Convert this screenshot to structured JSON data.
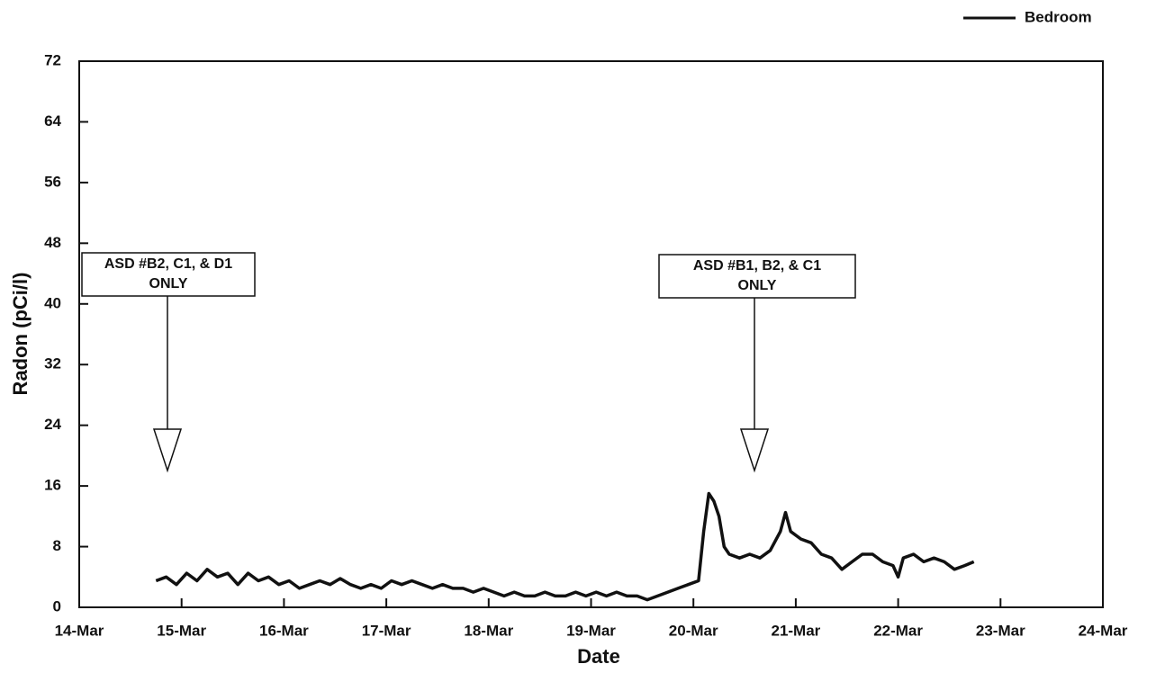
{
  "chart_data": {
    "type": "line",
    "x_label": "Date",
    "y_label": "Radon (pCi/l)",
    "xlim": [
      14,
      24
    ],
    "xticks": [
      {
        "value": 14,
        "label": "14-Mar"
      },
      {
        "value": 15,
        "label": "15-Mar"
      },
      {
        "value": 16,
        "label": "16-Mar"
      },
      {
        "value": 17,
        "label": "17-Mar"
      },
      {
        "value": 18,
        "label": "18-Mar"
      },
      {
        "value": 19,
        "label": "19-Mar"
      },
      {
        "value": 20,
        "label": "20-Mar"
      },
      {
        "value": 21,
        "label": "21-Mar"
      },
      {
        "value": 22,
        "label": "22-Mar"
      },
      {
        "value": 23,
        "label": "23-Mar"
      },
      {
        "value": 24,
        "label": "24-Mar"
      }
    ],
    "ylim": [
      0,
      72
    ],
    "yticks": [
      0,
      8,
      16,
      24,
      32,
      40,
      48,
      56,
      64,
      72
    ],
    "legend": "top-right",
    "annotations": [
      {
        "lines": [
          "ASD #B2, C1, & D1",
          "ONLY"
        ]
      },
      {
        "lines": [
          "ASD #B1, B2, & C1",
          "ONLY"
        ]
      }
    ],
    "x": [
      14.75,
      14.85,
      14.95,
      15.05,
      15.15,
      15.25,
      15.35,
      15.45,
      15.55,
      15.65,
      15.75,
      15.85,
      15.95,
      16.05,
      16.15,
      16.25,
      16.35,
      16.45,
      16.55,
      16.65,
      16.75,
      16.85,
      16.95,
      17.05,
      17.15,
      17.25,
      17.35,
      17.45,
      17.55,
      17.65,
      17.75,
      17.85,
      17.95,
      18.05,
      18.15,
      18.25,
      18.35,
      18.45,
      18.55,
      18.65,
      18.75,
      18.85,
      18.95,
      19.05,
      19.15,
      19.25,
      19.35,
      19.45,
      19.55,
      19.65,
      19.75,
      19.85,
      19.95,
      20.05,
      20.1,
      20.15,
      20.2,
      20.25,
      20.3,
      20.35,
      20.45,
      20.55,
      20.65,
      20.75,
      20.85,
      20.9,
      20.95,
      21.05,
      21.15,
      21.25,
      21.35,
      21.45,
      21.55,
      21.65,
      21.75,
      21.85,
      21.95,
      22.0,
      22.05,
      22.15,
      22.25,
      22.35,
      22.45,
      22.55,
      22.65,
      22.74
    ],
    "series": [
      {
        "name": "Bedroom",
        "color": "#111111",
        "values": [
          3.5,
          4,
          3,
          4.5,
          3.5,
          5,
          4,
          4.5,
          3,
          4.5,
          3.5,
          4,
          3,
          3.5,
          2.5,
          3,
          3.5,
          3,
          3.8,
          3,
          2.5,
          3,
          2.5,
          3.5,
          3,
          3.5,
          3,
          2.5,
          3,
          2.5,
          2.5,
          2,
          2.5,
          2,
          1.5,
          2,
          1.5,
          1.5,
          2,
          1.5,
          1.5,
          2,
          1.5,
          2,
          1.5,
          2,
          1.5,
          1.5,
          1,
          1.5,
          2,
          2.5,
          3,
          3.5,
          10,
          15,
          14,
          12,
          8,
          7,
          6.5,
          7,
          6.5,
          7.5,
          10,
          12.5,
          10,
          9,
          8.5,
          7,
          6.5,
          5,
          6,
          7,
          7,
          6,
          5.5,
          4,
          6.5,
          7,
          6,
          6.5,
          6,
          5,
          5.5,
          6
        ]
      }
    ]
  }
}
